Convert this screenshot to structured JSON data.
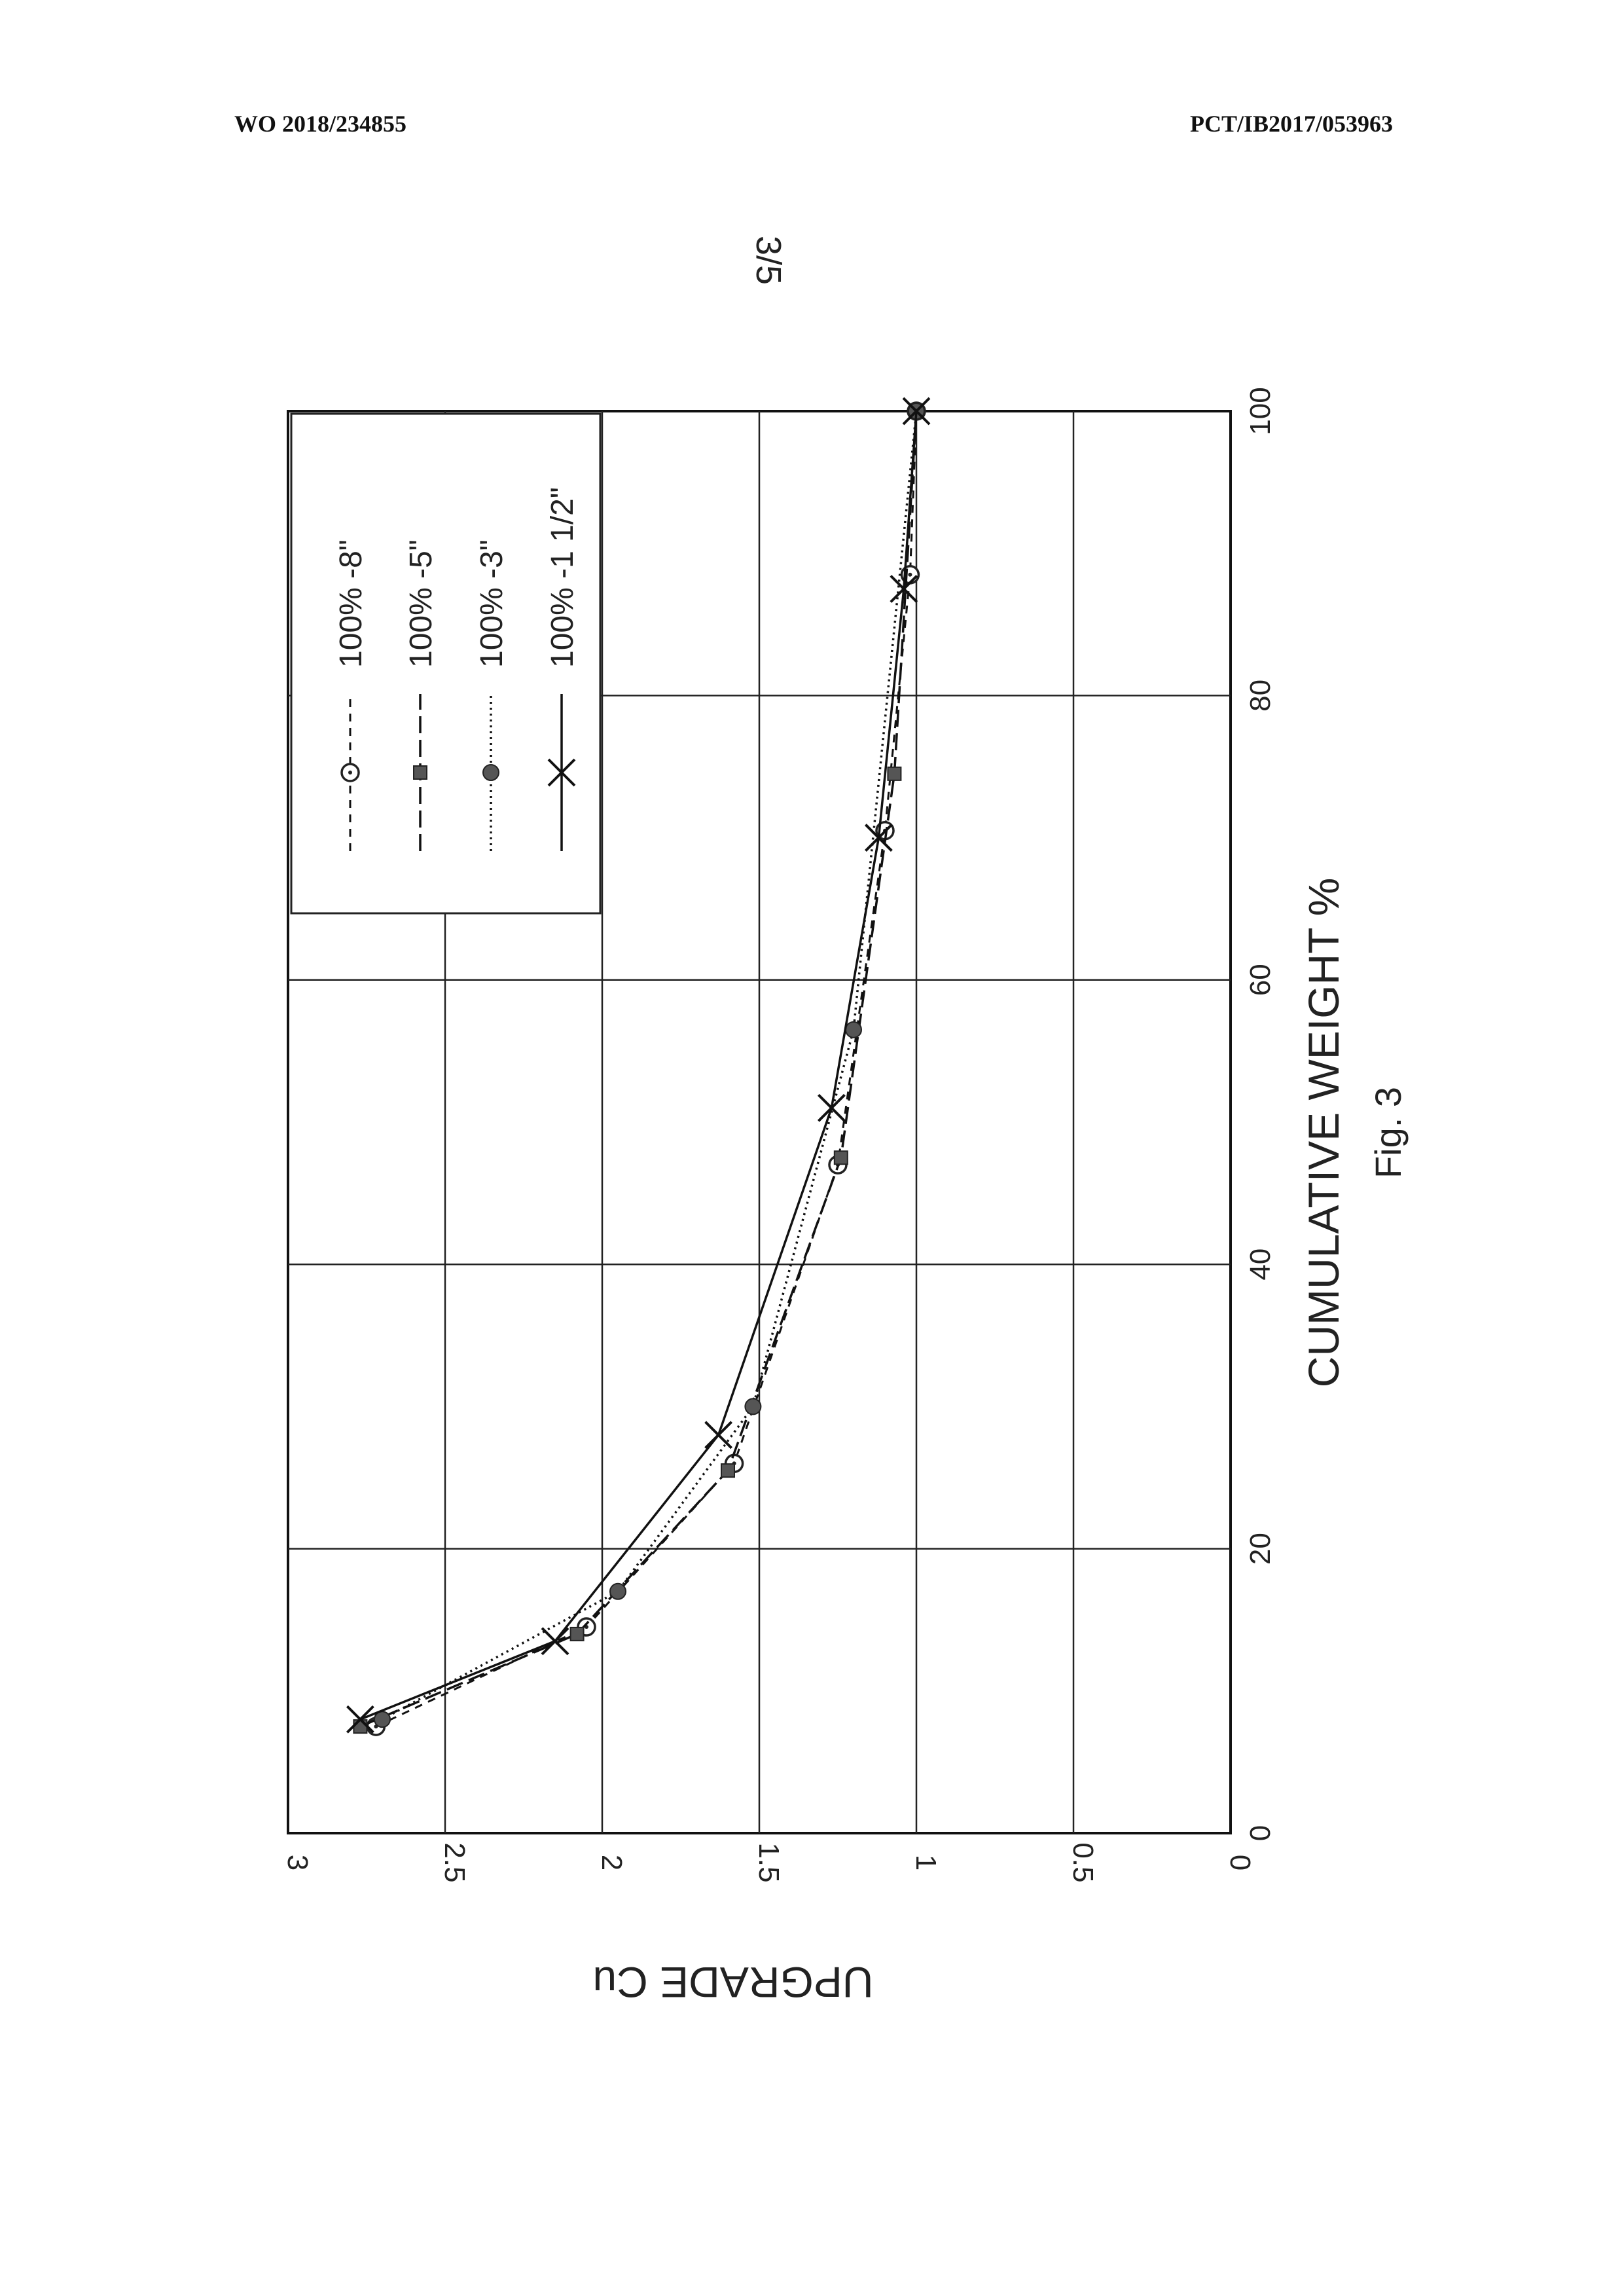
{
  "header": {
    "left": "WO 2018/234855",
    "right": "PCT/IB2017/053963"
  },
  "page_number": "3/5",
  "caption": "Fig. 3",
  "chart_data": {
    "type": "line",
    "orientation": "rotated 90 degrees clockwise on page",
    "xlabel": "CUMULATIVE WEIGHT %",
    "ylabel": "UPGRADE Cu",
    "xlim": [
      0,
      100
    ],
    "ylim": [
      0,
      3
    ],
    "xticks": [
      "0",
      "20",
      "40",
      "60",
      "80",
      "100"
    ],
    "yticks": [
      "0",
      "0.5",
      "1",
      "1.5",
      "2",
      "2.5",
      "3"
    ],
    "grid": true,
    "legend_placement": "top-left",
    "series": [
      {
        "name": "100% -8\"",
        "marker": "open-circle",
        "line": "dashed",
        "x": [
          7.5,
          14.5,
          26,
          47,
          70.5,
          88.5,
          100
        ],
        "y": [
          2.72,
          2.05,
          1.58,
          1.25,
          1.1,
          1.02,
          1.0
        ]
      },
      {
        "name": "100% -5\"",
        "marker": "filled-square",
        "line": "long-dash",
        "x": [
          7.5,
          14.0,
          25.5,
          47.5,
          74.5,
          100
        ],
        "y": [
          2.77,
          2.08,
          1.6,
          1.24,
          1.07,
          1.0
        ]
      },
      {
        "name": "100% -3\"",
        "marker": "filled-circle",
        "line": "dotted",
        "x": [
          8.0,
          17.0,
          30.0,
          56.5,
          100
        ],
        "y": [
          2.7,
          1.95,
          1.52,
          1.2,
          1.0
        ]
      },
      {
        "name": "100% -1 1/2\"",
        "marker": "x",
        "line": "solid",
        "x": [
          8.0,
          13.5,
          28.0,
          51.0,
          70.0,
          87.5,
          100
        ],
        "y": [
          2.77,
          2.15,
          1.63,
          1.27,
          1.12,
          1.04,
          1.0
        ]
      }
    ]
  }
}
